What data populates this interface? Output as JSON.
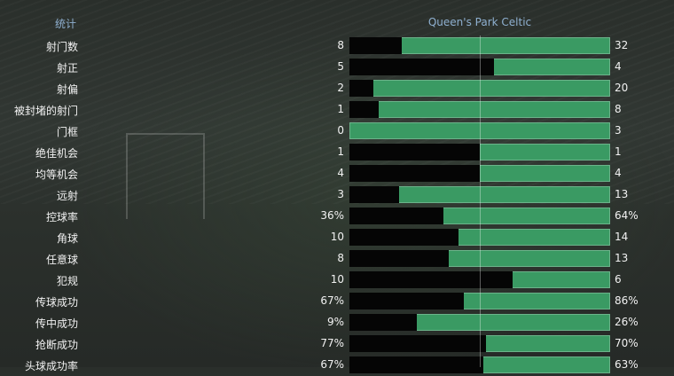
{
  "header": {
    "stats_label": "统计",
    "teams_label": "Queen's Park  Celtic"
  },
  "stats": [
    {
      "label": "射门数",
      "home": "8",
      "away": "32",
      "home_frac": 0.2
    },
    {
      "label": "射正",
      "home": "5",
      "away": "4",
      "home_frac": 0.556
    },
    {
      "label": "射偏",
      "home": "2",
      "away": "20",
      "home_frac": 0.091
    },
    {
      "label": "被封堵的射门",
      "home": "1",
      "away": "8",
      "home_frac": 0.111
    },
    {
      "label": "门框",
      "home": "0",
      "away": "3",
      "home_frac": 0.0
    },
    {
      "label": "绝佳机会",
      "home": "1",
      "away": "1",
      "home_frac": 0.5
    },
    {
      "label": "均等机会",
      "home": "4",
      "away": "4",
      "home_frac": 0.5
    },
    {
      "label": "远射",
      "home": "3",
      "away": "13",
      "home_frac": 0.19
    },
    {
      "label": "控球率",
      "home": "36%",
      "away": "64%",
      "home_frac": 0.36
    },
    {
      "label": "角球",
      "home": "10",
      "away": "14",
      "home_frac": 0.417
    },
    {
      "label": "任意球",
      "home": "8",
      "away": "13",
      "home_frac": 0.381
    },
    {
      "label": "犯规",
      "home": "10",
      "away": "6",
      "home_frac": 0.625
    },
    {
      "label": "传球成功",
      "home": "67%",
      "away": "86%",
      "home_frac": 0.438
    },
    {
      "label": "传中成功",
      "home": "9%",
      "away": "26%",
      "home_frac": 0.26
    },
    {
      "label": "抢断成功",
      "home": "77%",
      "away": "70%",
      "home_frac": 0.524
    },
    {
      "label": "头球成功率",
      "home": "67%",
      "away": "63%",
      "home_frac": 0.515
    }
  ]
}
